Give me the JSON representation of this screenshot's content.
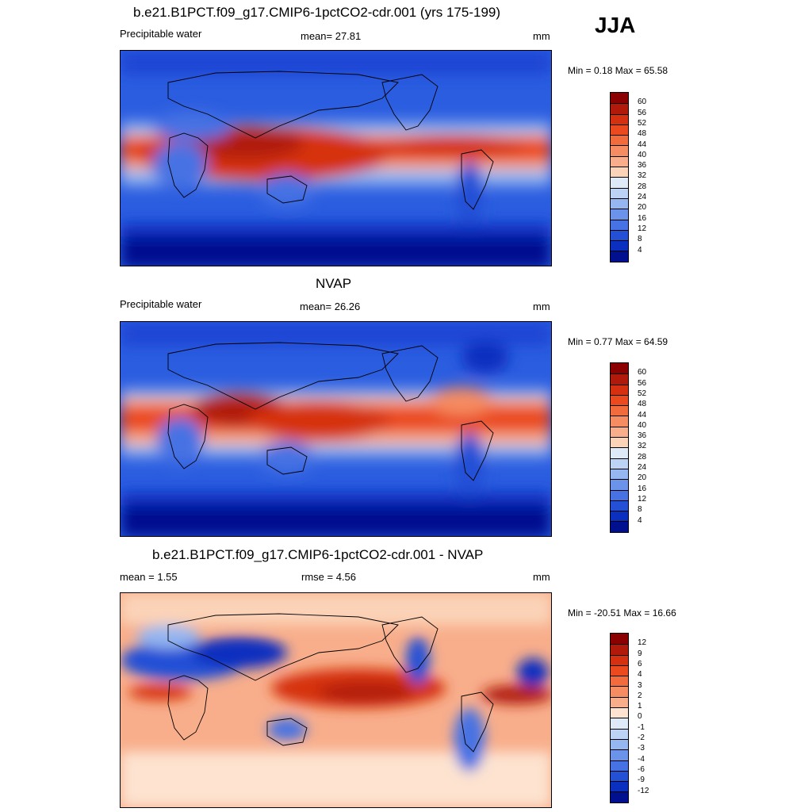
{
  "season": "JJA",
  "panels": [
    {
      "id": "model",
      "title": "b.e21.B1PCT.f09_g17.CMIP6-1pctCO2-cdr.001 (yrs 175-199)",
      "left_label": "Precipitable water",
      "center_label": "mean=  27.81",
      "units": "mm",
      "minmax": "Min =   0.18 Max =  65.58",
      "levels": [
        "60",
        "56",
        "52",
        "48",
        "44",
        "40",
        "36",
        "32",
        "28",
        "24",
        "20",
        "16",
        "12",
        "8",
        "4"
      ],
      "colors": [
        "#8b0000",
        "#b11a0a",
        "#d5300f",
        "#ea4a1e",
        "#f26b3c",
        "#f58c62",
        "#f8ae8b",
        "#fbd3b8",
        "#dfeaf8",
        "#bcd3f5",
        "#95b6f0",
        "#6b93ea",
        "#4772e3",
        "#2450d6",
        "#0b2fbf",
        "#00108f"
      ]
    },
    {
      "id": "obs",
      "title": "NVAP",
      "left_label": "Precipitable water",
      "center_label": "mean=  26.26",
      "units": "mm",
      "minmax": "Min =   0.77 Max =  64.59",
      "levels": [
        "60",
        "56",
        "52",
        "48",
        "44",
        "40",
        "36",
        "32",
        "28",
        "24",
        "20",
        "16",
        "12",
        "8",
        "4"
      ],
      "colors": [
        "#8b0000",
        "#b11a0a",
        "#d5300f",
        "#ea4a1e",
        "#f26b3c",
        "#f58c62",
        "#f8ae8b",
        "#fbd3b8",
        "#dfeaf8",
        "#bcd3f5",
        "#95b6f0",
        "#6b93ea",
        "#4772e3",
        "#2450d6",
        "#0b2fbf",
        "#00108f"
      ]
    },
    {
      "id": "diff",
      "title": "b.e21.B1PCT.f09_g17.CMIP6-1pctCO2-cdr.001 - NVAP",
      "left_label": "mean =   1.55",
      "center_label": "rmse =   4.56",
      "units": "mm",
      "minmax": "Min = -20.51 Max =  16.66",
      "levels": [
        "12",
        "9",
        "6",
        "4",
        "3",
        "2",
        "1",
        "0",
        "-1",
        "-2",
        "-3",
        "-4",
        "-6",
        "-9",
        "-12"
      ],
      "colors": [
        "#8b0000",
        "#b11a0a",
        "#d5300f",
        "#ea4a1e",
        "#f26b3c",
        "#f58c62",
        "#f8ae8b",
        "#fde3d0",
        "#dfeaf8",
        "#bcd3f5",
        "#95b6f0",
        "#6b93ea",
        "#4772e3",
        "#2450d6",
        "#0b2fbf",
        "#00108f"
      ]
    }
  ]
}
